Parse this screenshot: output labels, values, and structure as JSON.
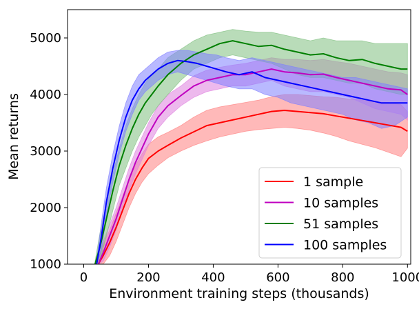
{
  "chart_data": {
    "type": "line",
    "title": "",
    "xlabel": "Environment training steps (thousands)",
    "ylabel": "Mean returns",
    "xlim": [
      -50,
      1010
    ],
    "ylim": [
      1000,
      5500
    ],
    "xticks": [
      0,
      200,
      400,
      600,
      800,
      1000
    ],
    "yticks": [
      1000,
      2000,
      3000,
      4000,
      5000
    ],
    "grid": false,
    "legend_position": "lower-right",
    "series": [
      {
        "name": "1 sample",
        "color": "#ff0000",
        "band_color": "#ff7f7f",
        "x": [
          45,
          60,
          80,
          100,
          120,
          140,
          160,
          180,
          200,
          230,
          260,
          300,
          340,
          380,
          420,
          460,
          500,
          540,
          580,
          620,
          660,
          700,
          740,
          780,
          820,
          860,
          900,
          940,
          980,
          1000
        ],
        "y": [
          1000,
          1150,
          1380,
          1650,
          1950,
          2250,
          2500,
          2700,
          2870,
          3000,
          3100,
          3230,
          3340,
          3450,
          3500,
          3550,
          3600,
          3650,
          3700,
          3720,
          3700,
          3680,
          3660,
          3620,
          3580,
          3540,
          3500,
          3460,
          3420,
          3350
        ],
        "lower": [
          1000,
          1000,
          1150,
          1400,
          1700,
          2000,
          2250,
          2450,
          2600,
          2750,
          2880,
          3000,
          3100,
          3180,
          3250,
          3300,
          3350,
          3380,
          3400,
          3420,
          3400,
          3370,
          3320,
          3260,
          3180,
          3120,
          3060,
          2980,
          2900,
          3050
        ],
        "upper": [
          1100,
          1350,
          1600,
          1900,
          2200,
          2500,
          2750,
          2950,
          3120,
          3250,
          3330,
          3450,
          3600,
          3720,
          3780,
          3820,
          3860,
          3900,
          3960,
          4000,
          4000,
          3980,
          3960,
          3950,
          3920,
          3900,
          3870,
          3860,
          3820,
          3700
        ]
      },
      {
        "name": "10 samples",
        "color": "#bf00bf",
        "band_color": "#df7fdf",
        "x": [
          45,
          60,
          80,
          100,
          120,
          140,
          160,
          180,
          200,
          230,
          260,
          300,
          340,
          380,
          420,
          460,
          500,
          540,
          580,
          620,
          660,
          700,
          740,
          780,
          820,
          860,
          900,
          940,
          980,
          1000
        ],
        "y": [
          1000,
          1200,
          1500,
          1800,
          2150,
          2500,
          2800,
          3050,
          3300,
          3600,
          3800,
          3980,
          4150,
          4250,
          4300,
          4350,
          4350,
          4400,
          4450,
          4400,
          4380,
          4350,
          4360,
          4300,
          4250,
          4200,
          4150,
          4100,
          4080,
          4000
        ],
        "lower": [
          1000,
          1050,
          1300,
          1600,
          1950,
          2300,
          2600,
          2850,
          3100,
          3400,
          3600,
          3800,
          3950,
          4050,
          4100,
          4150,
          4150,
          4200,
          4250,
          4150,
          4100,
          4050,
          4050,
          4000,
          3950,
          3850,
          3750,
          3700,
          3650,
          3550
        ],
        "upper": [
          1100,
          1400,
          1700,
          2000,
          2350,
          2700,
          3000,
          3250,
          3500,
          3800,
          4000,
          4150,
          4330,
          4430,
          4480,
          4520,
          4550,
          4600,
          4650,
          4620,
          4620,
          4600,
          4620,
          4580,
          4550,
          4500,
          4450,
          4400,
          4380,
          4350
        ]
      },
      {
        "name": "51 samples",
        "color": "#007f00",
        "band_color": "#7fbf7f",
        "x": [
          35,
          50,
          70,
          90,
          110,
          130,
          150,
          170,
          190,
          210,
          230,
          260,
          300,
          340,
          380,
          420,
          460,
          500,
          540,
          580,
          620,
          660,
          700,
          740,
          780,
          820,
          860,
          900,
          940,
          980,
          1000
        ],
        "y": [
          1000,
          1300,
          1800,
          2300,
          2750,
          3100,
          3400,
          3650,
          3850,
          4000,
          4150,
          4350,
          4550,
          4700,
          4800,
          4900,
          4950,
          4900,
          4850,
          4870,
          4800,
          4750,
          4700,
          4720,
          4650,
          4600,
          4620,
          4550,
          4500,
          4450,
          4450
        ],
        "lower": [
          1000,
          1050,
          1500,
          1950,
          2400,
          2700,
          3000,
          3250,
          3450,
          3650,
          3800,
          4000,
          4250,
          4450,
          4550,
          4650,
          4700,
          4650,
          4600,
          4550,
          4450,
          4350,
          4300,
          4300,
          4250,
          4200,
          4200,
          4100,
          4050,
          4000,
          4000
        ],
        "upper": [
          1050,
          1550,
          2050,
          2600,
          3050,
          3450,
          3750,
          4000,
          4200,
          4350,
          4450,
          4650,
          4800,
          4950,
          5050,
          5100,
          5150,
          5120,
          5100,
          5100,
          5050,
          5000,
          4950,
          5000,
          4950,
          4950,
          4950,
          4900,
          4900,
          4900,
          4900
        ]
      },
      {
        "name": "100 samples",
        "color": "#0000ff",
        "band_color": "#7f7fff",
        "x": [
          40,
          55,
          70,
          90,
          110,
          130,
          150,
          170,
          190,
          210,
          230,
          260,
          290,
          320,
          350,
          380,
          410,
          440,
          480,
          520,
          560,
          600,
          640,
          680,
          720,
          760,
          800,
          840,
          880,
          920,
          960,
          1000
        ],
        "y": [
          1000,
          1500,
          2100,
          2700,
          3200,
          3600,
          3900,
          4100,
          4250,
          4350,
          4450,
          4550,
          4600,
          4580,
          4550,
          4500,
          4450,
          4400,
          4350,
          4400,
          4300,
          4250,
          4200,
          4150,
          4100,
          4050,
          4000,
          3950,
          3900,
          3850,
          3850,
          3850
        ],
        "lower": [
          1000,
          1250,
          1850,
          2450,
          2950,
          3350,
          3650,
          3900,
          4050,
          4150,
          4250,
          4350,
          4400,
          4350,
          4300,
          4250,
          4200,
          4150,
          4100,
          4100,
          4000,
          3950,
          3850,
          3800,
          3750,
          3700,
          3650,
          3550,
          3500,
          3400,
          3450,
          3600
        ],
        "upper": [
          1100,
          1750,
          2350,
          2950,
          3450,
          3850,
          4150,
          4350,
          4450,
          4550,
          4650,
          4750,
          4780,
          4780,
          4750,
          4720,
          4700,
          4650,
          4600,
          4650,
          4600,
          4550,
          4500,
          4450,
          4400,
          4350,
          4300,
          4300,
          4250,
          4200,
          4150,
          4100
        ]
      }
    ]
  }
}
